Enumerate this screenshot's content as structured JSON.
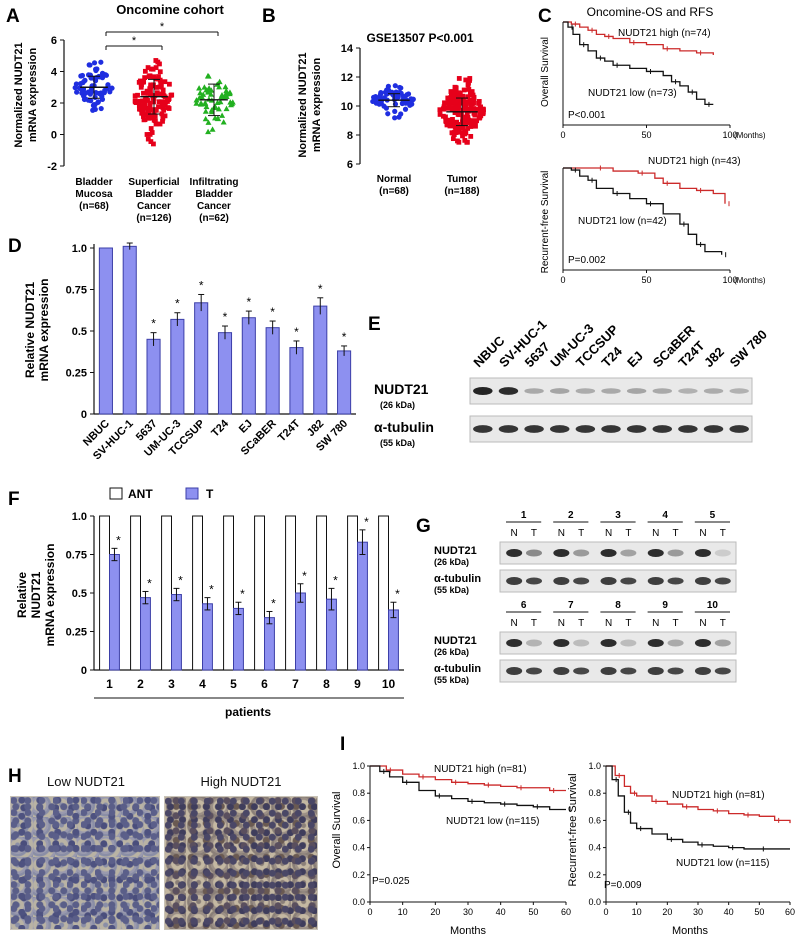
{
  "colors": {
    "blue": "#1f2ee0",
    "red": "#e6001a",
    "green": "#22b020",
    "bar": "#8d90f0",
    "bar_edge": "#3c3fa8",
    "km_high": "#cc2a2a",
    "km_low": "#111111",
    "blot_bg": "#e9e9e9",
    "blot_band": "#1a1a1a"
  },
  "panel_letters": {
    "A": "A",
    "B": "B",
    "C": "C",
    "D": "D",
    "E": "E",
    "F": "F",
    "G": "G",
    "H": "H",
    "I": "I"
  },
  "panel_a": {
    "title": "Oncomine cohort",
    "ylabel": [
      "Normalized NUDT21",
      "mRNA expression"
    ],
    "sig": "*",
    "chart_data": {
      "type": "scatter",
      "ylim": [
        -2,
        6
      ],
      "yticks": [
        -2,
        0,
        2,
        4,
        6
      ],
      "groups": [
        {
          "label": [
            "Bladder",
            "Mucosa",
            "(n=68)"
          ],
          "n": 68,
          "mean": 3.0,
          "sd": 0.7,
          "min": 1.0,
          "max": 4.6,
          "color": "#1f2ee0",
          "marker": "circle"
        },
        {
          "label": [
            "Superficial",
            "Bladder",
            "Cancer",
            "(n=126)"
          ],
          "n": 126,
          "mean": 2.4,
          "sd": 1.1,
          "min": -0.6,
          "max": 4.7,
          "color": "#e6001a",
          "marker": "square"
        },
        {
          "label": [
            "Infiltrating",
            "Bladder",
            "Cancer",
            "(n=62)"
          ],
          "n": 62,
          "mean": 2.2,
          "sd": 1.0,
          "min": 0.0,
          "max": 4.9,
          "color": "#22b020",
          "marker": "triangle"
        }
      ]
    }
  },
  "panel_b": {
    "title": "GSE13507  P<0.001",
    "ylabel": [
      "Normalized NUDT21",
      "mRNA expression"
    ],
    "chart_data": {
      "type": "scatter",
      "ylim": [
        6,
        14
      ],
      "yticks": [
        6,
        8,
        10,
        12,
        14
      ],
      "groups": [
        {
          "label": [
            "Normal",
            "(n=68)"
          ],
          "n": 68,
          "mean": 10.4,
          "sd": 0.45,
          "min": 9.1,
          "max": 11.4,
          "color": "#1f2ee0",
          "marker": "circle"
        },
        {
          "label": [
            "Tumor",
            "(n=188)"
          ],
          "n": 188,
          "mean": 9.6,
          "sd": 0.95,
          "min": 7.5,
          "max": 11.9,
          "color": "#e6001a",
          "marker": "square"
        }
      ]
    }
  },
  "panel_c": {
    "title": "Oncomine-OS and RFS",
    "top": {
      "ylabel": "Overall Survival",
      "p": "P<0.001",
      "xticks": [
        "0",
        "50",
        "100"
      ],
      "xunit": "(Months)",
      "high_label": "NUDT21  high   (n=74)",
      "low_label": "NUDT21 low   (n=73)",
      "chart_data": {
        "type": "line",
        "xlim": [
          0,
          100
        ],
        "ylim": [
          0,
          1
        ],
        "high": [
          [
            0,
            1
          ],
          [
            5,
            0.98
          ],
          [
            10,
            0.95
          ],
          [
            15,
            0.92
          ],
          [
            20,
            0.88
          ],
          [
            25,
            0.86
          ],
          [
            30,
            0.84
          ],
          [
            40,
            0.8
          ],
          [
            50,
            0.78
          ],
          [
            60,
            0.74
          ],
          [
            70,
            0.72
          ],
          [
            80,
            0.7
          ],
          [
            90,
            0.68
          ]
        ],
        "low": [
          [
            0,
            1
          ],
          [
            3,
            0.95
          ],
          [
            6,
            0.88
          ],
          [
            10,
            0.78
          ],
          [
            15,
            0.72
          ],
          [
            20,
            0.65
          ],
          [
            25,
            0.62
          ],
          [
            30,
            0.58
          ],
          [
            40,
            0.55
          ],
          [
            50,
            0.52
          ],
          [
            60,
            0.48
          ],
          [
            65,
            0.42
          ],
          [
            70,
            0.38
          ],
          [
            75,
            0.32
          ],
          [
            80,
            0.25
          ],
          [
            85,
            0.2
          ],
          [
            90,
            0.2
          ]
        ]
      }
    },
    "bottom": {
      "ylabel": "Recurrent-free Survival",
      "p": "P=0.002",
      "xticks": [
        "0",
        "50",
        "100"
      ],
      "xunit": "(Months)",
      "high_label": "NUDT21  high   (n=43)",
      "low_label": "NUDT21 low   (n=42)",
      "chart_data": {
        "type": "line",
        "xlim": [
          0,
          100
        ],
        "ylim": [
          0,
          1
        ],
        "high": [
          [
            0,
            1
          ],
          [
            20,
            1
          ],
          [
            30,
            0.97
          ],
          [
            45,
            0.95
          ],
          [
            55,
            0.9
          ],
          [
            60,
            0.85
          ],
          [
            70,
            0.8
          ],
          [
            80,
            0.78
          ],
          [
            90,
            0.75
          ],
          [
            97,
            0.65
          ]
        ],
        "low": [
          [
            0,
            1
          ],
          [
            5,
            0.98
          ],
          [
            10,
            0.92
          ],
          [
            15,
            0.88
          ],
          [
            20,
            0.8
          ],
          [
            30,
            0.75
          ],
          [
            40,
            0.7
          ],
          [
            50,
            0.65
          ],
          [
            60,
            0.55
          ],
          [
            70,
            0.45
          ],
          [
            75,
            0.35
          ],
          [
            80,
            0.25
          ],
          [
            85,
            0.18
          ],
          [
            95,
            0.15
          ]
        ]
      }
    }
  },
  "panel_d": {
    "ylabel": [
      "Relative NUDT21",
      "mRNA expression"
    ],
    "chart_data": {
      "type": "bar",
      "ylim": [
        0,
        1.0
      ],
      "yticks": [
        "0",
        "0.25",
        "0.5",
        "0.75",
        "1.0"
      ],
      "categories": [
        "NBUC",
        "SV-HUC-1",
        "5637",
        "UM-UC-3",
        "TCCSUP",
        "T24",
        "EJ",
        "SCaBER",
        "T24T",
        "J82",
        "SW 780"
      ],
      "values": [
        1.0,
        1.01,
        0.45,
        0.57,
        0.67,
        0.49,
        0.58,
        0.52,
        0.4,
        0.65,
        0.38
      ],
      "errors": [
        0,
        0.02,
        0.04,
        0.04,
        0.05,
        0.04,
        0.04,
        0.04,
        0.04,
        0.05,
        0.03
      ],
      "sig": [
        "",
        "",
        "*",
        "*",
        "*",
        "*",
        "*",
        "*",
        "*",
        "*",
        "*"
      ]
    }
  },
  "panel_e": {
    "lanes": [
      "NBUC",
      "SV-HUC-1",
      "5637",
      "UM-UC-3",
      "TCCSUP",
      "T24",
      "EJ",
      "SCaBER",
      "T24T",
      "J82",
      "SW 780"
    ],
    "rows": [
      {
        "label": "NUDT21",
        "sub": "(26 kDa)",
        "intensity": [
          1.0,
          0.95,
          0.2,
          0.22,
          0.18,
          0.2,
          0.22,
          0.2,
          0.15,
          0.18,
          0.15
        ]
      },
      {
        "label": "α-tubulin",
        "sub": "(55 kDa)",
        "intensity": [
          0.9,
          0.9,
          0.9,
          0.9,
          0.9,
          0.9,
          0.9,
          0.9,
          0.9,
          0.9,
          0.9
        ]
      }
    ]
  },
  "panel_f": {
    "legend": {
      "ant": "ANT",
      "t": "T"
    },
    "ylabel": [
      "Relative",
      "NUDT21",
      "mRNA expression"
    ],
    "xlabel": "patients",
    "chart_data": {
      "type": "bar",
      "ylim": [
        0,
        1.0
      ],
      "yticks": [
        "0",
        "0.25",
        "0.5",
        "0.75",
        "1.0"
      ],
      "categories": [
        "1",
        "2",
        "3",
        "4",
        "5",
        "6",
        "7",
        "8",
        "9",
        "10"
      ],
      "series": [
        {
          "name": "ANT",
          "values": [
            1,
            1,
            1,
            1,
            1,
            1,
            1,
            1,
            1,
            1
          ]
        },
        {
          "name": "T",
          "values": [
            0.75,
            0.47,
            0.49,
            0.43,
            0.4,
            0.34,
            0.5,
            0.46,
            0.83,
            0.39
          ],
          "errors": [
            0.04,
            0.04,
            0.04,
            0.04,
            0.04,
            0.04,
            0.06,
            0.07,
            0.08,
            0.05
          ]
        }
      ],
      "sig": "*"
    }
  },
  "panel_g": {
    "groups_top": [
      "1",
      "2",
      "3",
      "4",
      "5"
    ],
    "groups_bottom": [
      "6",
      "7",
      "8",
      "9",
      "10"
    ],
    "lane_n": "N",
    "lane_t": "T",
    "rows": [
      {
        "label": "NUDT21",
        "sub": "(26 kDa)"
      },
      {
        "label": "α-tubulin",
        "sub": "(55 kDa)"
      }
    ],
    "t_intensity_top": [
      0.45,
      0.35,
      0.3,
      0.35,
      0.05
    ],
    "t_intensity_bottom": [
      0.2,
      0.15,
      0.15,
      0.25,
      0.3
    ]
  },
  "panel_h": {
    "low": "Low NUDT21",
    "high": "High NUDT21"
  },
  "panel_i": {
    "left": {
      "ylabel": "Overall Survival",
      "xlabel": "Months",
      "p": "P=0.025",
      "high_label": "NUDT21  high   (n=81)",
      "low_label": "NUDT21 low   (n=115)",
      "yticks": [
        "0.0",
        "0.2",
        "0.4",
        "0.6",
        "0.8",
        "1.0"
      ],
      "xticks": [
        "0",
        "10",
        "20",
        "30",
        "40",
        "50",
        "60"
      ],
      "chart_data": {
        "type": "line",
        "xlim": [
          0,
          60
        ],
        "ylim": [
          0,
          1
        ],
        "high": [
          [
            0,
            1
          ],
          [
            5,
            0.97
          ],
          [
            10,
            0.94
          ],
          [
            15,
            0.92
          ],
          [
            20,
            0.9
          ],
          [
            25,
            0.88
          ],
          [
            30,
            0.87
          ],
          [
            35,
            0.86
          ],
          [
            40,
            0.85
          ],
          [
            45,
            0.84
          ],
          [
            50,
            0.84
          ],
          [
            55,
            0.82
          ],
          [
            60,
            0.82
          ]
        ],
        "low": [
          [
            0,
            1
          ],
          [
            3,
            0.96
          ],
          [
            6,
            0.92
          ],
          [
            10,
            0.88
          ],
          [
            15,
            0.82
          ],
          [
            20,
            0.78
          ],
          [
            25,
            0.76
          ],
          [
            30,
            0.74
          ],
          [
            35,
            0.73
          ],
          [
            40,
            0.72
          ],
          [
            45,
            0.71
          ],
          [
            50,
            0.7
          ],
          [
            55,
            0.68
          ],
          [
            60,
            0.68
          ]
        ]
      }
    },
    "right": {
      "ylabel": "Recurrent-free Survival",
      "xlabel": "Months",
      "p": "P=0.009",
      "high_label": "NUDT21  high   (n=81)",
      "low_label": "NUDT21 low   (n=115)",
      "yticks": [
        "0.0",
        "0.2",
        "0.4",
        "0.6",
        "0.8",
        "1.0"
      ],
      "xticks": [
        "0",
        "10",
        "20",
        "30",
        "40",
        "50",
        "60"
      ],
      "chart_data": {
        "type": "line",
        "xlim": [
          0,
          60
        ],
        "ylim": [
          0,
          1
        ],
        "high": [
          [
            0,
            1
          ],
          [
            3,
            0.93
          ],
          [
            6,
            0.85
          ],
          [
            8,
            0.8
          ],
          [
            10,
            0.78
          ],
          [
            15,
            0.74
          ],
          [
            20,
            0.72
          ],
          [
            25,
            0.7
          ],
          [
            30,
            0.68
          ],
          [
            35,
            0.67
          ],
          [
            40,
            0.65
          ],
          [
            45,
            0.64
          ],
          [
            50,
            0.63
          ],
          [
            55,
            0.6
          ],
          [
            60,
            0.58
          ]
        ],
        "low": [
          [
            0,
            1
          ],
          [
            2,
            0.9
          ],
          [
            4,
            0.78
          ],
          [
            6,
            0.66
          ],
          [
            8,
            0.58
          ],
          [
            10,
            0.54
          ],
          [
            15,
            0.5
          ],
          [
            20,
            0.46
          ],
          [
            25,
            0.44
          ],
          [
            30,
            0.42
          ],
          [
            35,
            0.41
          ],
          [
            40,
            0.4
          ],
          [
            45,
            0.39
          ],
          [
            50,
            0.39
          ],
          [
            60,
            0.39
          ]
        ]
      }
    }
  }
}
